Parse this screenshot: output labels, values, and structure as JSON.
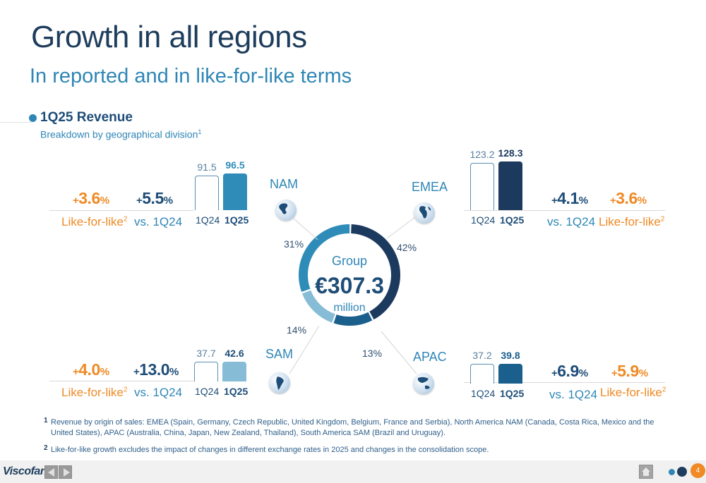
{
  "header": {
    "title": "Growth in all regions",
    "subtitle": "In reported and in like-for-like terms"
  },
  "section": {
    "title": "1Q25 Revenue",
    "subtitle": "Breakdown by geographical division",
    "subtitle_sup": "1"
  },
  "group": {
    "label": "Group",
    "value": "€307.3",
    "unit": "million"
  },
  "regions": {
    "nam": {
      "name": "NAM",
      "share": "31%",
      "prev_label": "1Q24",
      "cur_label": "1Q25",
      "prev_value": "91.5",
      "cur_value": "96.5",
      "vs_pct": "5.5",
      "lfl_pct": "3.6",
      "vs_label": "vs. 1Q24",
      "lfl_label": "Like-for-like",
      "lfl_sup": "2"
    },
    "emea": {
      "name": "EMEA",
      "share": "42%",
      "prev_label": "1Q24",
      "cur_label": "1Q25",
      "prev_value": "123.2",
      "cur_value": "128.3",
      "vs_pct": "4.1",
      "lfl_pct": "3.6",
      "vs_label": "vs. 1Q24",
      "lfl_label": "Like-for-like",
      "lfl_sup": "2"
    },
    "sam": {
      "name": "SAM",
      "share": "14%",
      "prev_label": "1Q24",
      "cur_label": "1Q25",
      "prev_value": "37.7",
      "cur_value": "42.6",
      "vs_pct": "13.0",
      "lfl_pct": "4.0",
      "vs_label": "vs. 1Q24",
      "lfl_label": "Like-for-like",
      "lfl_sup": "2"
    },
    "apac": {
      "name": "APAC",
      "share": "13%",
      "prev_label": "1Q24",
      "cur_label": "1Q25",
      "prev_value": "37.2",
      "cur_value": "39.8",
      "vs_pct": "6.9",
      "lfl_pct": "5.9",
      "vs_label": "vs. 1Q24",
      "lfl_label": "Like-for-like",
      "lfl_sup": "2"
    }
  },
  "pct_prefix": "+",
  "pct_suffix": "%",
  "chart_data": {
    "type": "bar",
    "categories": [
      "NAM",
      "EMEA",
      "SAM",
      "APAC"
    ],
    "series": [
      {
        "name": "1Q24",
        "values": [
          91.5,
          123.2,
          37.7,
          37.2
        ]
      },
      {
        "name": "1Q25",
        "values": [
          96.5,
          128.3,
          42.6,
          39.8
        ]
      }
    ],
    "donut": {
      "type": "pie",
      "labels": [
        "EMEA",
        "APAC",
        "SAM",
        "NAM"
      ],
      "values": [
        42,
        13,
        14,
        31
      ],
      "center_text": [
        "Group",
        "€307.3",
        "million"
      ]
    },
    "title": "1Q25 Revenue",
    "subtitle": "Breakdown by geographical division",
    "colors": {
      "NAM": "#2f8cb8",
      "EMEA": "#1c3a5e",
      "SAM": "#86bcd6",
      "APAC": "#1b5f8c"
    }
  },
  "footnotes": {
    "n1": "1",
    "f1": "Revenue by origin of sales: EMEA (Spain, Germany, Czech Republic, United Kingdom, Belgium, France and Serbia), North America NAM (Canada, Costa Rica, Mexico and the United States), APAC (Australia, China, Japan, New Zealand, Thailand), South America SAM (Brazil and Uruguay).",
    "n2": "2",
    "f2": "Like-for-like growth excludes the impact of changes in different exchange rates in 2025 and changes in the consolidation scope."
  },
  "footer": {
    "logo": "Viscofan",
    "page": "4"
  },
  "icons": {
    "prev": "arrow-left-icon",
    "next": "arrow-right-icon",
    "home": "home-icon",
    "globe": "globe-icon"
  }
}
